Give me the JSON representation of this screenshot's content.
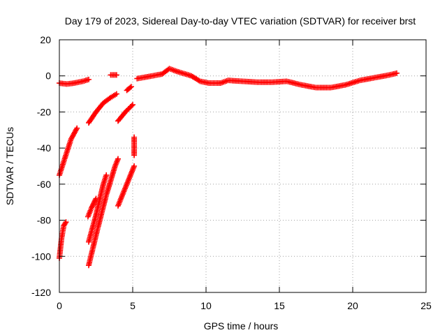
{
  "chart_data": {
    "type": "scatter",
    "title": "Day 179 of 2023, Sidereal Day-to-day VTEC variation (SDTVAR) for receiver brst",
    "xlabel": "GPS time / hours",
    "ylabel": "SDTVAR / TECUs",
    "xlim": [
      0,
      25
    ],
    "ylim": [
      -120,
      20
    ],
    "xticks": [
      0,
      5,
      10,
      15,
      20,
      25
    ],
    "yticks": [
      -120,
      -100,
      -80,
      -60,
      -40,
      -20,
      0,
      20
    ],
    "grid": true,
    "marker": "plus",
    "color": "#ff0000",
    "series": [
      {
        "name": "main",
        "segments": [
          [
            [
              0,
              -4
            ],
            [
              0.5,
              -4.5
            ],
            [
              1.0,
              -4
            ],
            [
              1.6,
              -3
            ],
            [
              2.0,
              -2
            ]
          ],
          [
            [
              3.5,
              0.5
            ],
            [
              3.9,
              0.5
            ]
          ],
          [
            [
              5.3,
              -1.5
            ],
            [
              6.0,
              -0.5
            ],
            [
              7.0,
              1
            ],
            [
              7.5,
              4
            ],
            [
              8.0,
              2.5
            ],
            [
              9.0,
              0
            ],
            [
              9.6,
              -3
            ],
            [
              10.2,
              -4
            ],
            [
              11.0,
              -4
            ],
            [
              11.5,
              -2.5
            ],
            [
              12.5,
              -3
            ],
            [
              13.5,
              -3.5
            ],
            [
              14.5,
              -3.5
            ],
            [
              15.5,
              -3
            ],
            [
              16.5,
              -5
            ],
            [
              17.5,
              -6.5
            ],
            [
              18.5,
              -6.5
            ],
            [
              19.5,
              -5
            ],
            [
              20.5,
              -2.5
            ],
            [
              21.5,
              -1
            ],
            [
              22.5,
              0.5
            ],
            [
              23.0,
              1.5
            ]
          ]
        ]
      },
      {
        "name": "descending arcs",
        "segments": [
          [
            [
              0,
              -55
            ],
            [
              0.4,
              -45
            ],
            [
              0.8,
              -35
            ],
            [
              1.2,
              -29
            ]
          ],
          [
            [
              2.0,
              -26
            ],
            [
              2.5,
              -20
            ],
            [
              3.0,
              -15
            ],
            [
              3.5,
              -12
            ],
            [
              3.9,
              -10
            ]
          ],
          [
            [
              4.0,
              -25
            ],
            [
              4.5,
              -20
            ],
            [
              5.0,
              -16
            ]
          ],
          [
            [
              4.6,
              -8
            ],
            [
              4.9,
              -6
            ]
          ],
          [
            [
              5.1,
              -34
            ],
            [
              5.1,
              -44
            ]
          ]
        ]
      },
      {
        "name": "low arcs",
        "segments": [
          [
            [
              0,
              -101
            ],
            [
              0.15,
              -90
            ],
            [
              0.3,
              -83
            ],
            [
              0.45,
              -81
            ]
          ],
          [
            [
              1.95,
              -78
            ],
            [
              2.2,
              -73
            ],
            [
              2.5,
              -68
            ]
          ],
          [
            [
              2.0,
              -92
            ],
            [
              2.5,
              -77
            ],
            [
              3.0,
              -60
            ],
            [
              3.2,
              -55
            ]
          ],
          [
            [
              2.0,
              -105
            ],
            [
              2.6,
              -85
            ],
            [
              3.2,
              -66
            ],
            [
              3.8,
              -50
            ],
            [
              4.0,
              -46
            ]
          ],
          [
            [
              4.0,
              -72
            ],
            [
              4.4,
              -64
            ],
            [
              4.8,
              -56
            ],
            [
              5.1,
              -50
            ]
          ]
        ]
      }
    ]
  }
}
